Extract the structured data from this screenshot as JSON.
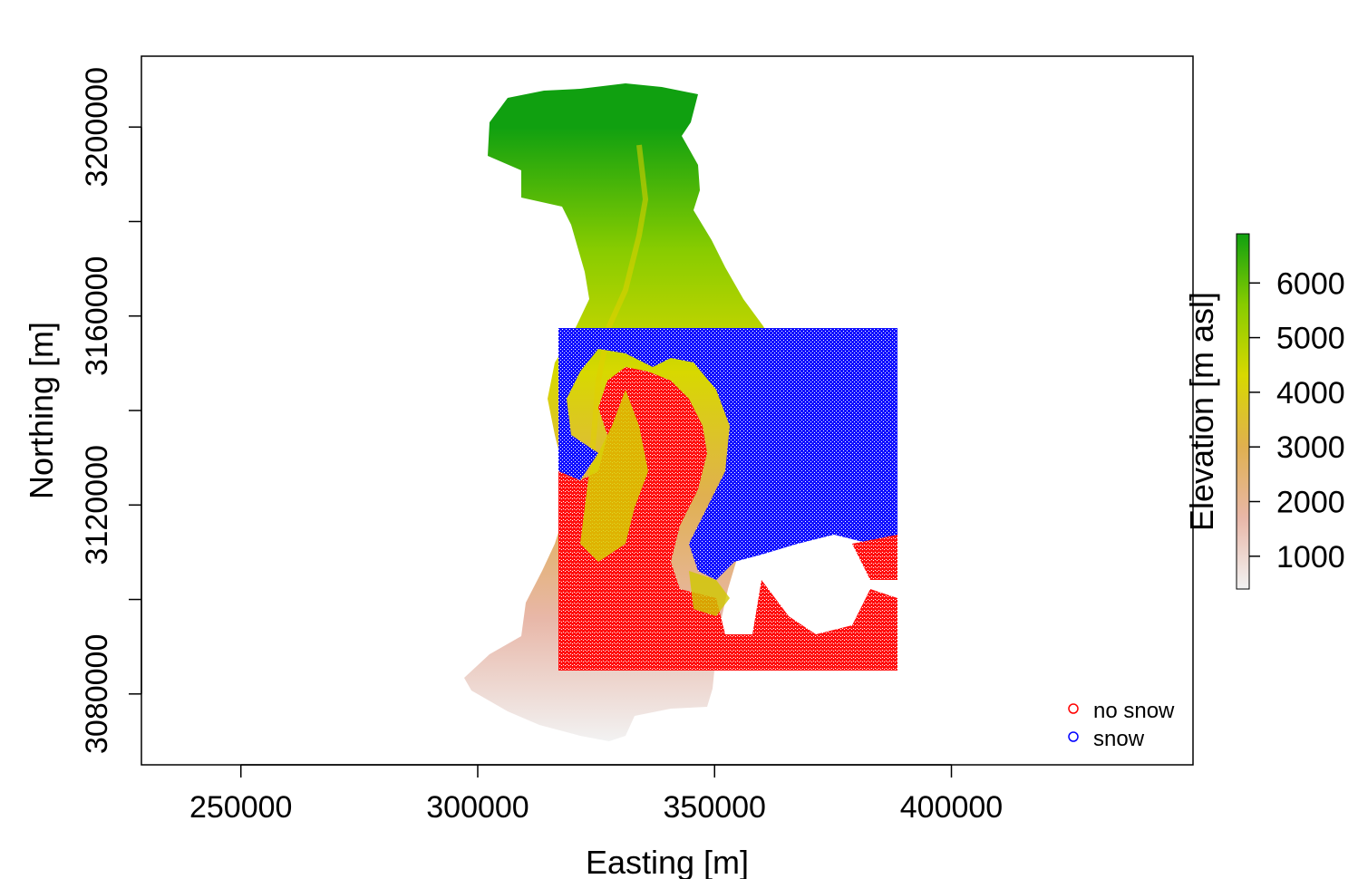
{
  "chart_data": {
    "type": "heatmap",
    "xlabel": "Easting [m]",
    "ylabel": "Northing [m]",
    "xlim": [
      229000,
      451000
    ],
    "ylim": [
      3065000,
      3215000
    ],
    "x_ticks": [
      250000,
      300000,
      350000,
      400000
    ],
    "x_tick_labels": [
      "250000",
      "300000",
      "350000",
      "400000"
    ],
    "y_ticks": [
      3080000,
      3100000,
      3120000,
      3140000,
      3160000,
      3180000,
      3200000
    ],
    "y_tick_labels": [
      "3080000",
      "",
      "3120000",
      "",
      "3160000",
      "",
      "3200000"
    ],
    "grid": false,
    "raster": {
      "name": "Elevation",
      "value_range": [
        400,
        6900
      ]
    },
    "colorbar": {
      "title": "Elevation [m asl]",
      "ticks": [
        1000,
        2000,
        3000,
        4000,
        5000,
        6000
      ],
      "tick_labels": [
        "1000",
        "2000",
        "3000",
        "4000",
        "5000",
        "6000"
      ],
      "range": [
        400,
        6900
      ],
      "colors": [
        "#f2f2f2",
        "#e8b7a8",
        "#e0b050",
        "#d8d800",
        "#88cc00",
        "#10a010"
      ]
    },
    "overlay_extent": {
      "x": [
        316000,
        387500
      ],
      "y": [
        3086000,
        3162000
      ]
    },
    "legend": {
      "position": "bottom-right",
      "entries": [
        {
          "label": "no snow",
          "color": "#ff0000"
        },
        {
          "label": "snow",
          "color": "#0000ff"
        }
      ]
    }
  }
}
